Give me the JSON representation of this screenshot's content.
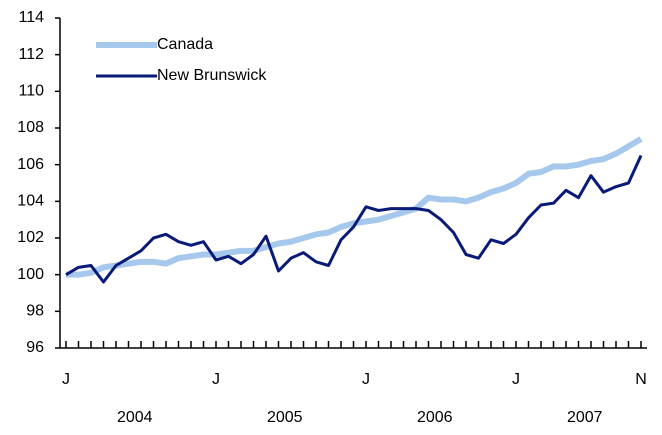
{
  "chart_data": {
    "type": "line",
    "categories": [
      "J",
      null,
      null,
      null,
      null,
      null,
      null,
      null,
      null,
      null,
      null,
      null,
      "J",
      null,
      null,
      null,
      null,
      null,
      null,
      null,
      null,
      null,
      null,
      null,
      "J",
      null,
      null,
      null,
      null,
      null,
      null,
      null,
      null,
      null,
      null,
      null,
      "J",
      null,
      null,
      null,
      null,
      null,
      null,
      null,
      null,
      null,
      "N"
    ],
    "x_groups": [
      "2004",
      "2005",
      "2006",
      "2007"
    ],
    "series": [
      {
        "name": "Canada",
        "color": "#a6c8ec",
        "values": [
          100.0,
          100.0,
          100.1,
          100.4,
          100.5,
          100.6,
          100.7,
          100.7,
          100.6,
          100.9,
          101.0,
          101.1,
          101.1,
          101.2,
          101.3,
          101.3,
          101.5,
          101.7,
          101.8,
          102.0,
          102.2,
          102.3,
          102.6,
          102.8,
          102.9,
          103.0,
          103.2,
          103.4,
          103.6,
          104.2,
          104.1,
          104.1,
          104.0,
          104.2,
          104.5,
          104.7,
          105.0,
          105.5,
          105.6,
          105.9,
          105.9,
          106.0,
          106.2,
          106.3,
          106.6,
          107.0,
          107.4
        ]
      },
      {
        "name": "New Brunswick",
        "color": "#0a1a78",
        "values": [
          100.0,
          100.4,
          100.5,
          99.6,
          100.5,
          100.9,
          101.3,
          102.0,
          102.2,
          101.8,
          101.6,
          101.8,
          100.8,
          101.0,
          100.6,
          101.1,
          102.1,
          100.2,
          100.9,
          101.2,
          100.7,
          100.5,
          101.9,
          102.6,
          103.7,
          103.5,
          103.6,
          103.6,
          103.6,
          103.5,
          103.0,
          102.3,
          101.1,
          100.9,
          101.9,
          101.7,
          102.2,
          103.1,
          103.8,
          103.9,
          104.6,
          104.2,
          105.4,
          104.5,
          104.8,
          105.0,
          106.5
        ]
      }
    ],
    "ylim": [
      96,
      114
    ],
    "yticks": [
      96,
      98,
      100,
      102,
      104,
      106,
      108,
      110,
      112,
      114
    ],
    "grid": false,
    "legend": "top-left"
  }
}
